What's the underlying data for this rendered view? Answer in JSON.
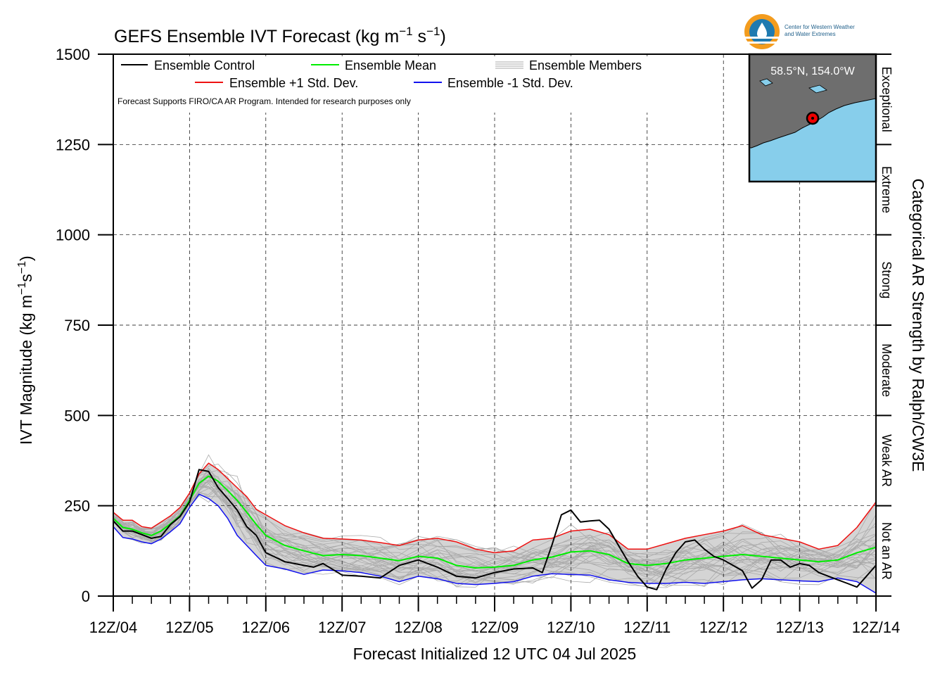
{
  "title_text": "GEFS Ensemble IVT Forecast (kg m",
  "title_exp1": "−1",
  "title_mid": " s",
  "title_exp2": "−1",
  "title_end": ")",
  "ylabel_text": "IVT Magnitude (kg m",
  "ylabel_exp1": "−1",
  "ylabel_mid": "s",
  "ylabel_exp2": "−1",
  "ylabel_end": ")",
  "xlabel": "Forecast Initialized 12 UTC 04 Jul 2025",
  "right_axis_label": "Categorical AR Strength by Ralph/CW3E",
  "note": "Forecast Supports FIRO/CA AR Program. Intended for research purposes only",
  "logo_text_line1": "Center for Western Weather",
  "logo_text_line2": "and Water Extremes",
  "inset_location": "58.5°N, 154.0°W",
  "legend": {
    "control": "Ensemble Control",
    "mean": "Ensemble Mean",
    "members": "Ensemble Members",
    "plus_sd": "Ensemble +1 Std. Dev.",
    "minus_sd": "Ensemble -1 Std. Dev."
  },
  "colors": {
    "control": "#000000",
    "mean": "#00ee00",
    "plus_sd": "#ee1111",
    "minus_sd": "#1111ee",
    "members": "#aaaaaa",
    "spread_fill": "#d4d4d4",
    "ocean": "#87ceeb",
    "land": "#6e6e6e"
  },
  "chart_data": {
    "type": "line",
    "x_unit": "days since 12Z 04 Jul 2025",
    "xlim": [
      0,
      10
    ],
    "ylim": [
      0,
      1500
    ],
    "yticks": [
      0,
      250,
      500,
      750,
      1000,
      1250,
      1500
    ],
    "xtick_labels": [
      "12Z/04",
      "12Z/05",
      "12Z/06",
      "12Z/07",
      "12Z/08",
      "12Z/09",
      "12Z/10",
      "12Z/11",
      "12Z/12",
      "12Z/13",
      "12Z/14"
    ],
    "categories": [
      {
        "name": "Not an AR",
        "range": [
          0,
          250
        ]
      },
      {
        "name": "Weak AR",
        "range": [
          250,
          500
        ]
      },
      {
        "name": "Moderate",
        "range": [
          500,
          750
        ]
      },
      {
        "name": "Strong",
        "range": [
          750,
          1000
        ]
      },
      {
        "name": "Extreme",
        "range": [
          1000,
          1250
        ]
      },
      {
        "name": "Exceptional",
        "range": [
          1250,
          1500
        ]
      }
    ],
    "grid": true,
    "series": [
      {
        "name": "Ensemble +1 Std. Dev.",
        "x": [
          0,
          0.125,
          0.25,
          0.375,
          0.5,
          0.625,
          0.75,
          0.875,
          1,
          1.125,
          1.25,
          1.375,
          1.5,
          1.625,
          1.75,
          1.875,
          2,
          2.25,
          2.5,
          2.75,
          3,
          3.25,
          3.5,
          3.75,
          4,
          4.25,
          4.5,
          4.75,
          5,
          5.25,
          5.5,
          5.75,
          6,
          6.25,
          6.5,
          6.75,
          7,
          7.25,
          7.5,
          7.75,
          8,
          8.25,
          8.5,
          8.75,
          9,
          9.25,
          9.5,
          9.75,
          10
        ],
        "values": [
          232,
          210,
          210,
          192,
          188,
          205,
          222,
          245,
          285,
          338,
          368,
          350,
          325,
          300,
          275,
          240,
          225,
          195,
          175,
          160,
          158,
          155,
          148,
          140,
          155,
          160,
          150,
          130,
          120,
          125,
          155,
          160,
          180,
          185,
          170,
          130,
          130,
          145,
          160,
          170,
          180,
          195,
          170,
          160,
          150,
          130,
          140,
          190,
          260
        ]
      },
      {
        "name": "Ensemble Mean",
        "x": [
          0,
          0.125,
          0.25,
          0.375,
          0.5,
          0.625,
          0.75,
          0.875,
          1,
          1.125,
          1.25,
          1.375,
          1.5,
          1.625,
          1.75,
          1.875,
          2,
          2.25,
          2.5,
          2.75,
          3,
          3.25,
          3.5,
          3.75,
          4,
          4.25,
          4.5,
          4.75,
          5,
          5.25,
          5.5,
          5.75,
          6,
          6.25,
          6.5,
          6.75,
          7,
          7.25,
          7.5,
          7.75,
          8,
          8.25,
          8.5,
          8.75,
          9,
          9.25,
          9.5,
          9.75,
          10
        ],
        "values": [
          215,
          190,
          185,
          175,
          168,
          180,
          200,
          222,
          265,
          312,
          332,
          318,
          292,
          265,
          232,
          198,
          168,
          140,
          125,
          112,
          115,
          112,
          105,
          98,
          110,
          105,
          85,
          78,
          80,
          85,
          100,
          108,
          122,
          125,
          115,
          90,
          85,
          90,
          100,
          105,
          110,
          115,
          110,
          105,
          100,
          95,
          100,
          120,
          135
        ]
      },
      {
        "name": "Ensemble -1 Std. Dev.",
        "x": [
          0,
          0.125,
          0.25,
          0.375,
          0.5,
          0.625,
          0.75,
          0.875,
          1,
          1.125,
          1.25,
          1.375,
          1.5,
          1.625,
          1.75,
          1.875,
          2,
          2.25,
          2.5,
          2.75,
          3,
          3.25,
          3.5,
          3.75,
          4,
          4.25,
          4.5,
          4.75,
          5,
          5.25,
          5.5,
          5.75,
          6,
          6.25,
          6.5,
          6.75,
          7,
          7.25,
          7.5,
          7.75,
          8,
          8.25,
          8.5,
          8.75,
          9,
          9.25,
          9.5,
          9.75,
          10
        ],
        "values": [
          192,
          162,
          158,
          150,
          145,
          158,
          178,
          200,
          245,
          282,
          270,
          250,
          215,
          168,
          140,
          112,
          85,
          75,
          60,
          72,
          70,
          65,
          55,
          40,
          55,
          48,
          35,
          32,
          35,
          40,
          55,
          62,
          60,
          58,
          45,
          38,
          35,
          35,
          38,
          35,
          40,
          45,
          48,
          45,
          42,
          40,
          50,
          40,
          8
        ]
      },
      {
        "name": "Ensemble Control",
        "x": [
          0,
          0.125,
          0.25,
          0.375,
          0.5,
          0.625,
          0.75,
          0.875,
          1,
          1.125,
          1.25,
          1.375,
          1.5,
          1.625,
          1.75,
          1.875,
          2,
          2.25,
          2.5,
          2.625,
          2.75,
          3,
          3.25,
          3.5,
          3.75,
          4,
          4.25,
          4.5,
          4.75,
          5,
          5.25,
          5.5,
          5.625,
          5.75,
          5.875,
          6,
          6.125,
          6.25,
          6.375,
          6.5,
          6.625,
          6.75,
          6.875,
          7,
          7.125,
          7.25,
          7.375,
          7.5,
          7.625,
          7.75,
          7.875,
          8,
          8.125,
          8.25,
          8.375,
          8.5,
          8.625,
          8.75,
          8.875,
          9,
          9.125,
          9.25,
          9.375,
          9.5,
          9.625,
          9.75,
          10
        ],
        "values": [
          208,
          180,
          180,
          170,
          160,
          165,
          198,
          220,
          260,
          350,
          345,
          300,
          270,
          238,
          192,
          168,
          120,
          95,
          85,
          80,
          90,
          58,
          55,
          50,
          85,
          100,
          80,
          55,
          50,
          65,
          75,
          78,
          65,
          140,
          225,
          238,
          205,
          208,
          210,
          185,
          140,
          95,
          55,
          25,
          18,
          75,
          120,
          150,
          155,
          130,
          110,
          100,
          85,
          70,
          22,
          45,
          100,
          100,
          80,
          90,
          85,
          65,
          55,
          45,
          35,
          25,
          85
        ]
      }
    ]
  }
}
